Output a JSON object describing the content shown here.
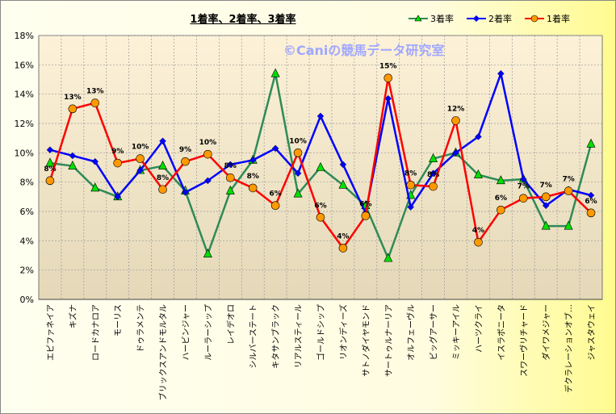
{
  "chart_data": {
    "type": "line",
    "title": "1着率、2着率、3着率",
    "watermark": "©Caniの競馬データ研究室",
    "xlabel": "",
    "ylabel": "",
    "ylim": [
      0,
      18
    ],
    "yticks": [
      "0%",
      "2%",
      "4%",
      "6%",
      "8%",
      "10%",
      "12%",
      "14%",
      "16%",
      "18%"
    ],
    "grid": true,
    "legend_position": "top-right",
    "categories": [
      "エピファネイア",
      "キズナ",
      "ロードカナロア",
      "モーリス",
      "ドゥラメンテ",
      "ブリックスアンドモルタル",
      "ハービンジャー",
      "ルーラーシップ",
      "レイデオロ",
      "シルバーステート",
      "キタサンブラック",
      "リアルスティール",
      "ゴールドシップ",
      "リオンディーズ",
      "サトノダイヤモンド",
      "サートゥルナーリア",
      "オルフェーヴル",
      "ビッグアーサー",
      "ミッキーアイル",
      "ハーツクライ",
      "イスラボニータ",
      "スワーヴリチャード",
      "ダイワメジャー",
      "デクラレーションオブ…",
      "ジャスタウェイ"
    ],
    "series": [
      {
        "name": "3着率",
        "color": "#2e8b57",
        "marker_color": "#00e000",
        "marker": "triangle",
        "values": [
          9.3,
          9.1,
          7.6,
          7.0,
          8.8,
          9.1,
          7.4,
          3.1,
          7.4,
          9.5,
          15.4,
          7.2,
          9.0,
          7.8,
          6.4,
          2.8,
          7.1,
          9.6,
          10.0,
          8.5,
          8.1,
          8.2,
          5.0,
          5.0,
          10.6
        ]
      },
      {
        "name": "2着率",
        "color": "#0000ff",
        "marker_color": "#0000ff",
        "marker": "diamond",
        "values": [
          10.2,
          9.8,
          9.4,
          7.0,
          8.8,
          10.8,
          7.3,
          8.1,
          9.2,
          9.5,
          10.3,
          8.6,
          12.5,
          9.2,
          5.9,
          13.7,
          6.3,
          8.6,
          10.0,
          11.1,
          15.4,
          8.2,
          6.4,
          7.5,
          7.1
        ]
      },
      {
        "name": "1着率",
        "color": "#ff0000",
        "marker_color": "#ff9900",
        "marker": "circle",
        "values": [
          8.1,
          13.0,
          13.4,
          9.3,
          9.6,
          7.5,
          9.4,
          9.9,
          8.3,
          7.6,
          6.4,
          10.0,
          5.6,
          3.5,
          5.7,
          15.1,
          7.8,
          7.7,
          12.2,
          3.9,
          6.1,
          6.9,
          7.0,
          7.4,
          5.9
        ],
        "data_labels": [
          "8%",
          "13%",
          "13%",
          "9%",
          "10%",
          "8%",
          "9%",
          "10%",
          "8%",
          "8%",
          "6%",
          "10%",
          "6%",
          "4%",
          "6%",
          "15%",
          "8%",
          "8%",
          "12%",
          "4%",
          "6%",
          "7%",
          "7%",
          "7%",
          "6%"
        ]
      }
    ]
  }
}
